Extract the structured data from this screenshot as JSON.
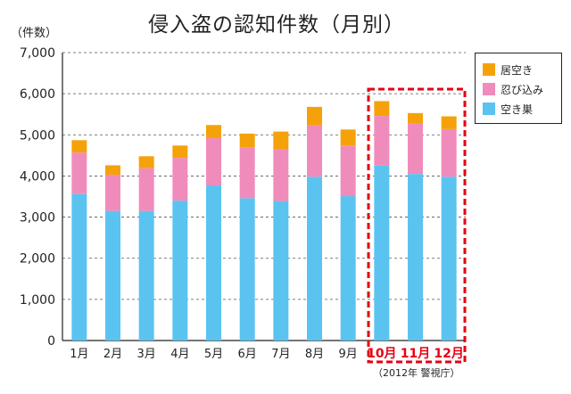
{
  "title": "侵入盗の認知件数（月別）",
  "unit_label": "（件数）",
  "source": "（2012年 警視庁）",
  "colors": {
    "axis": "#222222",
    "grid": "#555555",
    "highlight": "#e60012",
    "highlight_text": "#e60012"
  },
  "chart_data": {
    "type": "bar",
    "stacked": true,
    "title": "侵入盗の認知件数（月別）",
    "ylabel": "（件数）",
    "ylim": [
      0,
      7000
    ],
    "yticks": [
      0,
      1000,
      2000,
      3000,
      4000,
      5000,
      6000,
      7000
    ],
    "ytick_labels": [
      "0",
      "1,000",
      "2,000",
      "3,000",
      "4,000",
      "5,000",
      "6,000",
      "7,000"
    ],
    "grid": "horizontal dashed",
    "legend_position": "top-right",
    "categories": [
      "1月",
      "2月",
      "3月",
      "4月",
      "5月",
      "6月",
      "7月",
      "8月",
      "9月",
      "10月",
      "11月",
      "12月"
    ],
    "highlight_categories": [
      9,
      10,
      11
    ],
    "series": [
      {
        "name": "空き巣",
        "color": "#5bc3f0",
        "values": [
          3560,
          3150,
          3150,
          3400,
          3770,
          3460,
          3390,
          3980,
          3510,
          4250,
          4050,
          3980
        ]
      },
      {
        "name": "忍び込み",
        "color": "#f08cbb",
        "values": [
          1010,
          880,
          1040,
          1040,
          1150,
          1240,
          1260,
          1250,
          1230,
          1210,
          1220,
          1160
        ]
      },
      {
        "name": "居空き",
        "color": "#f5a20a",
        "values": [
          300,
          230,
          290,
          300,
          320,
          330,
          430,
          450,
          390,
          360,
          260,
          310
        ]
      }
    ]
  }
}
